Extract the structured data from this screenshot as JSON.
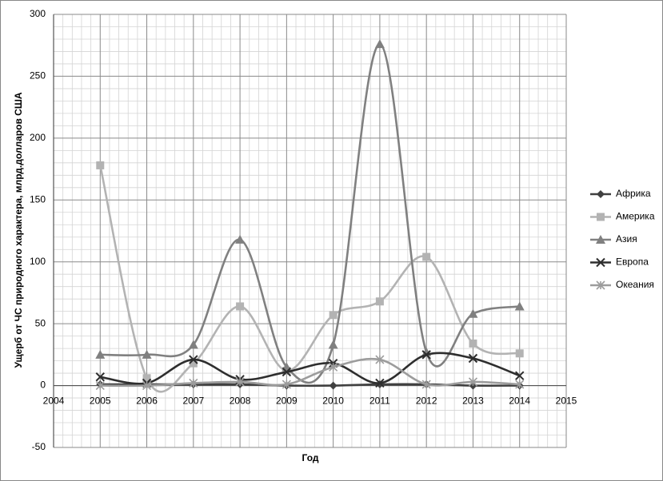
{
  "chart_data": {
    "type": "line",
    "smooth": true,
    "x_label": "Год",
    "y_label": "Ущерб от ЧС природного характера, млрд.долларов США",
    "x": [
      2005,
      2006,
      2007,
      2008,
      2009,
      2010,
      2011,
      2012,
      2013,
      2014
    ],
    "series": [
      {
        "name": "Африка",
        "color": "#404040",
        "marker": "diamond",
        "values": [
          1,
          1,
          1,
          1,
          0,
          0,
          1,
          1,
          0,
          0
        ]
      },
      {
        "name": "Америка",
        "color": "#b3b3b3",
        "marker": "square",
        "values": [
          178,
          6,
          18,
          64,
          12,
          57,
          68,
          104,
          34,
          26
        ]
      },
      {
        "name": "Азия",
        "color": "#808080",
        "marker": "triangle",
        "values": [
          25,
          25,
          33,
          118,
          15,
          33,
          276,
          27,
          58,
          64
        ]
      },
      {
        "name": "Европа",
        "color": "#2e2e2e",
        "marker": "cross",
        "values": [
          7,
          2,
          21,
          5,
          11,
          18,
          2,
          25,
          22,
          8
        ]
      },
      {
        "name": "Океания",
        "color": "#9c9c9c",
        "marker": "star",
        "values": [
          0,
          0,
          2,
          3,
          1,
          15,
          21,
          1,
          3,
          1
        ]
      }
    ],
    "xlim": [
      2004,
      2015
    ],
    "xticks": [
      2004,
      2005,
      2006,
      2007,
      2008,
      2009,
      2010,
      2011,
      2012,
      2013,
      2014,
      2015
    ],
    "ylim": [
      -50,
      300
    ],
    "yticks": [
      -50,
      0,
      50,
      100,
      150,
      200,
      250,
      300
    ],
    "grid": true,
    "minor_grid": true,
    "legend": "right"
  }
}
